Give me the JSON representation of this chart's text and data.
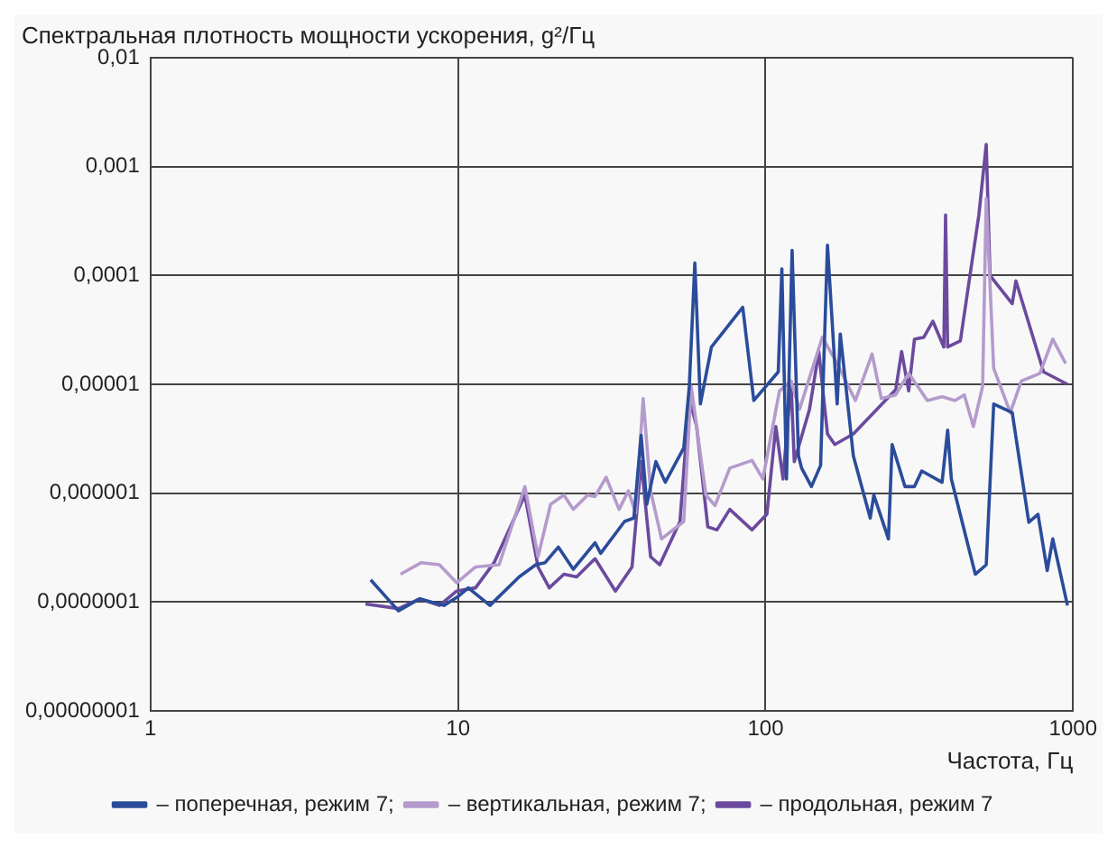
{
  "chart_data": {
    "type": "line",
    "ylabel": "Спектральная плотность мощности ускорения, g²/Гц",
    "xlabel": "Частота, Гц",
    "log": "xy",
    "grid": true,
    "legend": "bottom",
    "marker": "none",
    "line_style": "solid",
    "xlim": [
      1,
      1000
    ],
    "xticks": [
      1,
      10,
      100,
      1000
    ],
    "ylim": [
      1e-08,
      0.01
    ],
    "yticks": [
      {
        "value": 0.01,
        "label": "0,01"
      },
      {
        "value": 0.001,
        "label": "0,001"
      },
      {
        "value": 0.0001,
        "label": "0,0001"
      },
      {
        "value": 1e-05,
        "label": "0,00001"
      },
      {
        "value": 1e-06,
        "label": "0,000001"
      },
      {
        "value": 1e-07,
        "label": "0,0000001"
      },
      {
        "value": 1e-08,
        "label": "0,00000001"
      }
    ],
    "series": [
      {
        "name": "– поперечная, режим 7;",
        "color": "#2b4c9b",
        "x": [
          5.2,
          6.4,
          7.5,
          9,
          9.9,
          10.8,
          12.7,
          15.8,
          17.9,
          19.2,
          21.2,
          23.7,
          27.9,
          29.1,
          34.8,
          37.3,
          39.4,
          41.1,
          44,
          47.2,
          54.2,
          56.5,
          58.9,
          61.4,
          66.7,
          84.3,
          91.6,
          110,
          113,
          117,
          122,
          128,
          131,
          141,
          151,
          159,
          171,
          175,
          193,
          219,
          225,
          251,
          258,
          284,
          305,
          322,
          375,
          391,
          402,
          481,
          522,
          552,
          634,
          718,
          769,
          824,
          859,
          959
        ],
        "values": [
          1.6e-07,
          8.3e-08,
          1.07e-07,
          9.3e-08,
          1.1e-07,
          1.35e-07,
          9.3e-08,
          1.7e-07,
          2.2e-07,
          2.3e-07,
          3.2e-07,
          2e-07,
          3.5e-07,
          2.8e-07,
          5.5e-07,
          5.9e-07,
          3.4e-06,
          7.9e-07,
          1.95e-06,
          1.26e-06,
          2.6e-06,
          9.6e-06,
          0.00013,
          6.6e-06,
          2.2e-05,
          5.1e-05,
          7.1e-06,
          1.3e-05,
          0.000115,
          1.35e-06,
          0.00017,
          2.2e-06,
          1.7e-06,
          1.15e-06,
          1.8e-06,
          0.00019,
          6.6e-06,
          2.9e-05,
          2.2e-06,
          5.9e-07,
          9.6e-07,
          3.8e-07,
          2.8e-06,
          1.15e-06,
          1.15e-06,
          1.6e-06,
          1.26e-06,
          3.8e-06,
          1.35e-06,
          1.8e-07,
          2.2e-07,
          6.6e-06,
          5.5e-06,
          5.4e-07,
          6.4e-07,
          1.95e-07,
          3.8e-07,
          9.3e-08
        ]
      },
      {
        "name": "– вертикальная, режим 7;",
        "color": "#b49bcc",
        "x": [
          6.5,
          7.6,
          8.7,
          9.9,
          11.4,
          13.6,
          16.5,
          18.2,
          20,
          22.1,
          23.7,
          26.4,
          27.9,
          30.3,
          33.4,
          35.8,
          37.8,
          40,
          42.3,
          45.9,
          54.2,
          57.3,
          64,
          68.5,
          76.5,
          90.4,
          98,
          111,
          121,
          129,
          153,
          171,
          196,
          222,
          238,
          265,
          292,
          336,
          375,
          413,
          443,
          474,
          508,
          522,
          552,
          625,
          679,
          780,
          859,
          946
        ],
        "values": [
          1.8e-07,
          2.3e-07,
          2.2e-07,
          1.5e-07,
          2.1e-07,
          2.2e-07,
          1.15e-06,
          2.6e-07,
          7.9e-07,
          9.6e-07,
          7.1e-07,
          9.6e-07,
          9.3e-07,
          1.4e-06,
          7.1e-07,
          1.05e-06,
          6.6e-07,
          7.4e-06,
          1.05e-06,
          3.8e-07,
          5.5e-07,
          9.6e-06,
          9.6e-07,
          7.7e-07,
          1.7e-06,
          2e-06,
          1.35e-06,
          8.7e-06,
          1.07e-05,
          5.9e-06,
          2.7e-05,
          1.55e-05,
          7.1e-06,
          1.9e-05,
          7.4e-06,
          8e-06,
          1.26e-05,
          7.1e-06,
          7.7e-06,
          7.1e-06,
          8e-06,
          4.1e-06,
          9.6e-06,
          0.00051,
          1.4e-05,
          5.5e-06,
          1.07e-05,
          1.26e-05,
          2.6e-05,
          1.55e-05
        ]
      },
      {
        "name": "– продольная, режим 7",
        "color": "#6b4a9e",
        "x": [
          5,
          6.4,
          7.5,
          8.7,
          9.9,
          11.4,
          13.1,
          16.5,
          18.2,
          19.8,
          22.1,
          24.3,
          27.9,
          32.5,
          36.8,
          39.4,
          42.3,
          45.3,
          52.7,
          56.5,
          59.7,
          64.9,
          69.5,
          76.5,
          90.4,
          101,
          108,
          114,
          121,
          124,
          139,
          149,
          159,
          168,
          193,
          265,
          277,
          292,
          305,
          327,
          350,
          380,
          385,
          391,
          430,
          494,
          522,
          537,
          634,
          652,
          802,
          959
        ],
        "values": [
          9.6e-08,
          8.7e-08,
          1.07e-07,
          9.3e-08,
          1.26e-07,
          1.35e-07,
          2.3e-07,
          9.6e-07,
          2.1e-07,
          1.35e-07,
          1.8e-07,
          1.7e-07,
          2.5e-07,
          1.26e-07,
          2.1e-07,
          1.95e-06,
          2.6e-07,
          2.2e-07,
          5.5e-07,
          7.4e-06,
          4.1e-06,
          4.9e-07,
          4.6e-07,
          7.1e-07,
          4.6e-07,
          6.4e-07,
          4.1e-06,
          1.35e-06,
          1.07e-05,
          1.95e-06,
          5.9e-06,
          2e-05,
          3.5e-06,
          2.8e-06,
          3.5e-06,
          8.9e-06,
          2e-05,
          8.7e-06,
          2.6e-05,
          2.7e-05,
          3.8e-05,
          2.2e-05,
          0.00036,
          2.2e-05,
          2.5e-05,
          0.00036,
          0.0016,
          0.0001,
          5.5e-05,
          8.9e-05,
          1.3e-05,
          1e-05
        ]
      }
    ]
  }
}
